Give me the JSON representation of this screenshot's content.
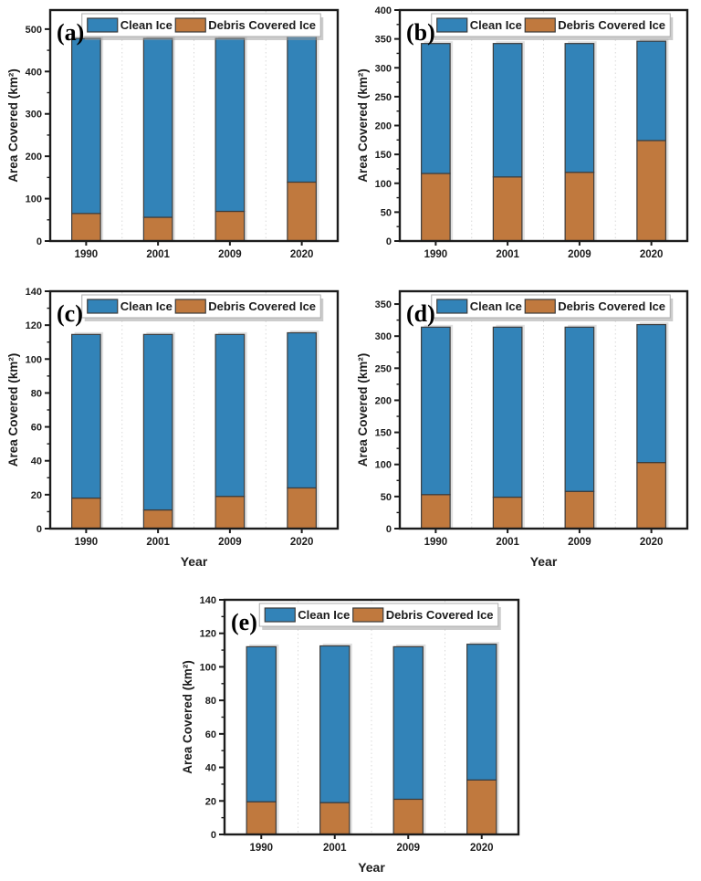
{
  "figure": {
    "background": "#ffffff",
    "legend_labels": [
      "Clean Ice",
      "Debris Covered Ice"
    ]
  },
  "colors": {
    "clean_ice": "#3283b8",
    "debris_ice": "#c0793e",
    "frame": "#1c1c1c",
    "text": "#1c1c1c",
    "grid": "#d9d9d9",
    "bar_stroke": "#3c3c3c",
    "bar_shadow": "#c6c6c6",
    "legend_bg": "#ffffff",
    "legend_border": "#adadad",
    "legend_shadow": "#9a9a9a"
  },
  "chart_data": [
    {
      "id": "a",
      "type": "bar",
      "stacked": true,
      "panel_label": "(a)",
      "categories": [
        "1990",
        "2001",
        "2009",
        "2020"
      ],
      "series": [
        {
          "name": "Debris Covered Ice",
          "color_key": "debris_ice",
          "values": [
            65,
            56,
            70,
            139
          ]
        },
        {
          "name": "Clean Ice",
          "color_key": "clean_ice",
          "values": [
            413,
            422,
            408,
            344
          ]
        }
      ],
      "totals": [
        478,
        478,
        478,
        483
      ],
      "ylabel": "Area Covered (km²)",
      "xlabel": "",
      "ylim": [
        0,
        545
      ],
      "yticks": [
        0,
        100,
        200,
        300,
        400,
        500
      ],
      "yminor_step": 50,
      "legend_position": "top-center",
      "grid": "vertical-dotted"
    },
    {
      "id": "b",
      "type": "bar",
      "stacked": true,
      "panel_label": "(b)",
      "categories": [
        "1990",
        "2001",
        "2009",
        "2020"
      ],
      "series": [
        {
          "name": "Debris Covered Ice",
          "color_key": "debris_ice",
          "values": [
            117,
            111,
            119,
            174
          ]
        },
        {
          "name": "Clean Ice",
          "color_key": "clean_ice",
          "values": [
            225,
            231,
            223,
            172
          ]
        }
      ],
      "totals": [
        342,
        342,
        342,
        346
      ],
      "ylabel": "Area Covered (km²)",
      "xlabel": "",
      "ylim": [
        0,
        400
      ],
      "yticks": [
        0,
        50,
        100,
        150,
        200,
        250,
        300,
        350,
        400
      ],
      "yminor_step": 25,
      "legend_position": "top-center",
      "grid": "vertical-dotted"
    },
    {
      "id": "c",
      "type": "bar",
      "stacked": true,
      "panel_label": "(c)",
      "categories": [
        "1990",
        "2001",
        "2009",
        "2020"
      ],
      "series": [
        {
          "name": "Debris Covered Ice",
          "color_key": "debris_ice",
          "values": [
            18,
            11,
            19,
            24
          ]
        },
        {
          "name": "Clean Ice",
          "color_key": "clean_ice",
          "values": [
            96.5,
            103.5,
            95.5,
            91.5
          ]
        }
      ],
      "totals": [
        114.5,
        114.5,
        114.5,
        115.5
      ],
      "ylabel": "Area Covered (km²)",
      "xlabel": "Year",
      "ylim": [
        0,
        140
      ],
      "yticks": [
        0,
        20,
        40,
        60,
        80,
        100,
        120,
        140
      ],
      "yminor_step": 10,
      "legend_position": "top-center",
      "grid": "vertical-dotted"
    },
    {
      "id": "d",
      "type": "bar",
      "stacked": true,
      "panel_label": "(d)",
      "categories": [
        "1990",
        "2001",
        "2009",
        "2020"
      ],
      "series": [
        {
          "name": "Debris Covered Ice",
          "color_key": "debris_ice",
          "values": [
            53,
            49,
            58,
            103
          ]
        },
        {
          "name": "Clean Ice",
          "color_key": "clean_ice",
          "values": [
            261,
            265,
            256,
            215
          ]
        }
      ],
      "totals": [
        314,
        314,
        314,
        318
      ],
      "ylabel": "Area Covered (km²)",
      "xlabel": "Year",
      "ylim": [
        0,
        370
      ],
      "yticks": [
        0,
        50,
        100,
        150,
        200,
        250,
        300,
        350
      ],
      "yminor_step": 25,
      "legend_position": "top-center",
      "grid": "vertical-dotted"
    },
    {
      "id": "e",
      "type": "bar",
      "stacked": true,
      "panel_label": "(e)",
      "categories": [
        "1990",
        "2001",
        "2009",
        "2020"
      ],
      "series": [
        {
          "name": "Debris Covered Ice",
          "color_key": "debris_ice",
          "values": [
            19.5,
            19,
            21,
            32.5
          ]
        },
        {
          "name": "Clean Ice",
          "color_key": "clean_ice",
          "values": [
            92.5,
            93.5,
            91,
            81
          ]
        }
      ],
      "totals": [
        112,
        112.5,
        112,
        113.5
      ],
      "ylabel": "Area Covered (km²)",
      "xlabel": "Year",
      "ylim": [
        0,
        140
      ],
      "yticks": [
        0,
        20,
        40,
        60,
        80,
        100,
        120,
        140
      ],
      "yminor_step": 10,
      "legend_position": "top-center",
      "grid": "vertical-dotted"
    }
  ]
}
